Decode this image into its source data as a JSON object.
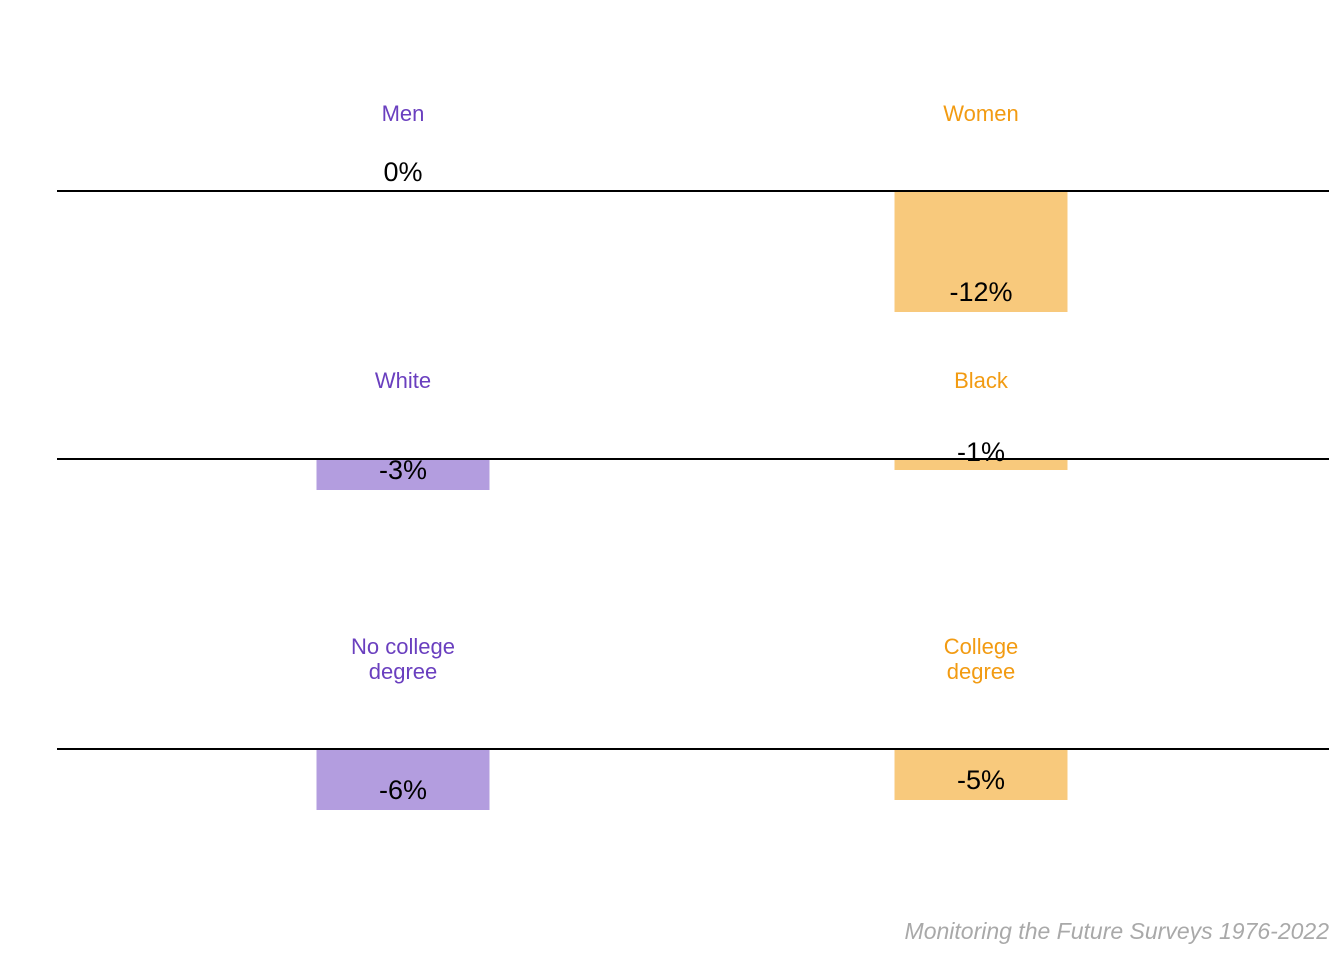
{
  "chart_data": {
    "type": "bar",
    "unit": "%",
    "ylim": [
      -12,
      0
    ],
    "grid": false,
    "colors": {
      "left": "#b39ddf",
      "right": "#f8c97c",
      "left_text": "#6a3fbf",
      "right_text": "#f29b12",
      "baseline": "#000000"
    },
    "panels": [
      {
        "categories": [
          "Men",
          "Women"
        ],
        "values": [
          0,
          -12
        ],
        "labels": [
          "0%",
          "-12%"
        ]
      },
      {
        "categories": [
          "White",
          "Black"
        ],
        "values": [
          -3,
          -1
        ],
        "labels": [
          "-3%",
          "-1%"
        ]
      },
      {
        "categories": [
          "No college\ndegree",
          "College\ndegree"
        ],
        "values": [
          -6,
          -5
        ],
        "labels": [
          "-6%",
          "-5%"
        ]
      }
    ]
  },
  "source_caption": "Monitoring the Future Surveys 1976-2022"
}
